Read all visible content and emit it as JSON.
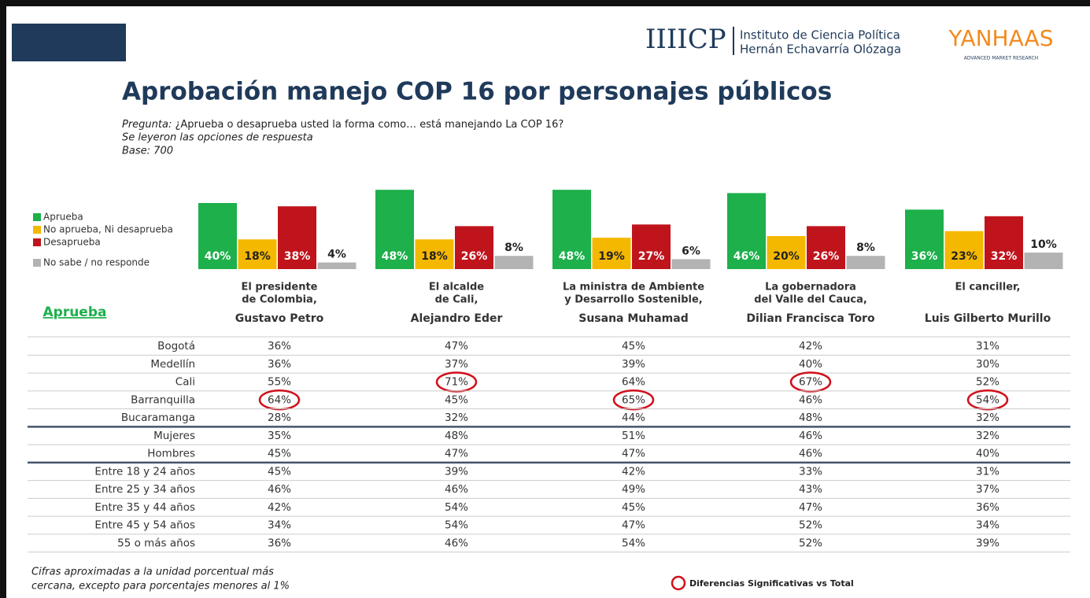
{
  "header": {
    "logo_mark": "IIIICP",
    "institute_line1": "Instituto de Ciencia Política",
    "institute_line2": "Hernán Echavarría Olózaga",
    "brand": "YANHAAS",
    "brand_tagline": "ADVANCED MARKET RESEARCH"
  },
  "title": "Aprobación manejo COP 16 por personajes públicos",
  "question_label": "Pregunta:",
  "question": "¿Aprueba o desaprueba usted la forma como… está manejando La COP 16?",
  "note_read": "Se leyeron las opciones de respuesta",
  "base": "Base: 700",
  "legend": [
    {
      "name": "Aprueba",
      "color": "#1db04b"
    },
    {
      "name": "No aprueba, Ni desaprueba",
      "color": "#f5b800"
    },
    {
      "name": "Desaprueba",
      "color": "#c0141c"
    },
    {
      "name": "No sabe / no responde",
      "color": "#b3b3b3"
    }
  ],
  "chart_data": [
    {
      "type": "bar",
      "values": [
        40,
        18,
        38,
        4
      ],
      "value_labels": [
        "40%",
        "18%",
        "38%",
        "4%"
      ],
      "ylim": [
        0,
        50
      ]
    },
    {
      "type": "bar",
      "values": [
        48,
        18,
        26,
        8
      ],
      "value_labels": [
        "48%",
        "18%",
        "26%",
        "8%"
      ],
      "ylim": [
        0,
        50
      ]
    },
    {
      "type": "bar",
      "values": [
        48,
        19,
        27,
        6
      ],
      "value_labels": [
        "48%",
        "19%",
        "27%",
        "6%"
      ],
      "ylim": [
        0,
        50
      ]
    },
    {
      "type": "bar",
      "values": [
        46,
        20,
        26,
        8
      ],
      "value_labels": [
        "46%",
        "20%",
        "26%",
        "8%"
      ],
      "ylim": [
        0,
        50
      ]
    },
    {
      "type": "bar",
      "values": [
        36,
        23,
        32,
        10
      ],
      "value_labels": [
        "36%",
        "23%",
        "32%",
        "10%"
      ],
      "ylim": [
        0,
        50
      ]
    }
  ],
  "table": {
    "corner": "Aprueba",
    "columns": [
      {
        "role": [
          "El presidente",
          "de Colombia,"
        ],
        "name": "Gustavo Petro"
      },
      {
        "role": [
          "El alcalde",
          "de Cali,"
        ],
        "name": "Alejandro Eder"
      },
      {
        "role": [
          "La ministra de Ambiente",
          "y Desarrollo Sostenible,"
        ],
        "name": "Susana Muhamad"
      },
      {
        "role": [
          "La gobernadora",
          "del Valle del Cauca,"
        ],
        "name": "Dilian Francisca Toro"
      },
      {
        "role": [
          "El canciller,"
        ],
        "name": "Luis Gilberto Murillo"
      }
    ],
    "groups": [
      {
        "rows": [
          {
            "label": "Bogotá",
            "cells": [
              "36%",
              "47%",
              "45%",
              "42%",
              "31%"
            ]
          },
          {
            "label": "Medellín",
            "cells": [
              "36%",
              "37%",
              "39%",
              "40%",
              "30%"
            ]
          },
          {
            "label": "Cali",
            "cells": [
              "55%",
              {
                "text": "71%",
                "significant": true
              },
              "64%",
              {
                "text": "67%",
                "significant": true
              },
              "52%"
            ]
          },
          {
            "label": "Barranquilla",
            "cells": [
              {
                "text": "64%",
                "significant": true
              },
              "45%",
              {
                "text": "65%",
                "significant": true
              },
              "46%",
              {
                "text": "54%",
                "significant": true
              }
            ]
          },
          {
            "label": "Bucaramanga",
            "cells": [
              "28%",
              "32%",
              "44%",
              "48%",
              "32%"
            ]
          }
        ]
      },
      {
        "rows": [
          {
            "label": "Mujeres",
            "cells": [
              "35%",
              "48%",
              "51%",
              "46%",
              "32%"
            ]
          },
          {
            "label": "Hombres",
            "cells": [
              "45%",
              "47%",
              "47%",
              "46%",
              "40%"
            ]
          }
        ]
      },
      {
        "rows": [
          {
            "label": "Entre 18 y 24 años",
            "cells": [
              "45%",
              "39%",
              "42%",
              "33%",
              "31%"
            ]
          },
          {
            "label": "Entre 25 y 34 años",
            "cells": [
              "46%",
              "46%",
              "49%",
              "43%",
              "37%"
            ]
          },
          {
            "label": "Entre 35 y 44 años",
            "cells": [
              "42%",
              "54%",
              "45%",
              "47%",
              "36%"
            ]
          },
          {
            "label": "Entre 45 y 54 años",
            "cells": [
              "34%",
              "54%",
              "47%",
              "52%",
              "34%"
            ]
          },
          {
            "label": "55 o más años",
            "cells": [
              "36%",
              "46%",
              "54%",
              "52%",
              "39%"
            ]
          }
        ]
      }
    ]
  },
  "footnote_line1": "Cifras aproximadas a la unidad porcentual más",
  "footnote_line2": "cercana, excepto para porcentajes menores al 1%",
  "significance_note": "Diferencias Significativas vs Total"
}
